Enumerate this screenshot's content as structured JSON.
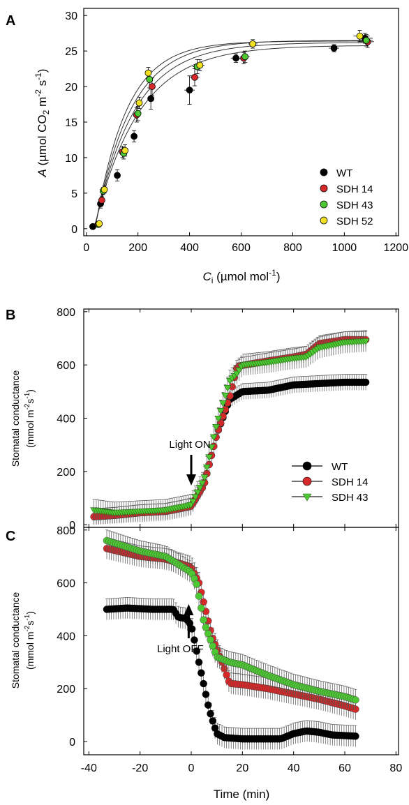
{
  "chart_data": [
    {
      "panel": "A",
      "type": "scatter",
      "xlabel": "Ci (µmol mol-1)",
      "xlabel_main": "C",
      "xlabel_sub": "i",
      "xlabel_rest": " (µmol mol",
      "xlabel_sup": "-1",
      "xlabel_end": ")",
      "ylabel": "A (µmol CO2 m-2 s-1)",
      "ylabel_main": "A",
      "ylabel_p1": " (µmol CO",
      "ylabel_s1": "2",
      "ylabel_p2": " m",
      "ylabel_s2": "-2",
      "ylabel_p3": " s",
      "ylabel_s3": "-1",
      "ylabel_p4": ")",
      "xlim": [
        -10,
        1210
      ],
      "ylim": [
        -1,
        31
      ],
      "xticks": [
        "0",
        "200",
        "400",
        "600",
        "800",
        "1000",
        "1200"
      ],
      "yticks": [
        "0",
        "5",
        "10",
        "15",
        "20",
        "25",
        "30"
      ],
      "legend_position": "lower right",
      "series": [
        {
          "name": "WT",
          "color": "#000000",
          "amax": 25.8,
          "k": 0.0058,
          "x0": 30,
          "x": [
            25,
            55,
            120,
            185,
            250,
            400,
            580,
            960,
            1080
          ],
          "y": [
            0.3,
            3.5,
            7.5,
            13.0,
            18.3,
            19.5,
            24.0,
            25.4,
            26.8
          ],
          "xerr": [
            5,
            5,
            8,
            10,
            12,
            20,
            20,
            20,
            30
          ],
          "yerr": [
            0.2,
            0.6,
            0.8,
            0.8,
            1.5,
            2.0,
            0.6,
            0.5,
            0.7
          ]
        },
        {
          "name": "SDH 14",
          "color": "#d62828",
          "amax": 26.2,
          "k": 0.0065,
          "x0": 32,
          "x": [
            45,
            60,
            140,
            195,
            255,
            420,
            610,
            1090
          ],
          "y": [
            0.6,
            4.0,
            10.8,
            16.0,
            20.0,
            21.3,
            24.0,
            26.3
          ],
          "xerr": [
            5,
            5,
            8,
            10,
            12,
            18,
            18,
            25
          ],
          "yerr": [
            0.2,
            0.5,
            0.8,
            1.0,
            1.2,
            1.2,
            0.8,
            0.8
          ]
        },
        {
          "name": "SDH 43",
          "color": "#4cc832",
          "amax": 26.5,
          "k": 0.0072,
          "x0": 33,
          "x": [
            48,
            65,
            145,
            200,
            245,
            430,
            615,
            1085
          ],
          "y": [
            0.6,
            5.3,
            10.6,
            16.2,
            21.0,
            22.8,
            24.2,
            26.5
          ],
          "xerr": [
            5,
            5,
            8,
            10,
            12,
            18,
            18,
            25
          ],
          "yerr": [
            0.2,
            0.5,
            0.8,
            1.0,
            1.2,
            1.0,
            0.8,
            0.8
          ]
        },
        {
          "name": "SDH 52",
          "color": "#f0e020",
          "amax": 26.4,
          "k": 0.0082,
          "x0": 34,
          "x": [
            50,
            70,
            150,
            205,
            240,
            440,
            645,
            1060
          ],
          "y": [
            0.7,
            5.5,
            11.0,
            17.7,
            21.9,
            23.0,
            26.0,
            27.1
          ],
          "xerr": [
            5,
            5,
            8,
            10,
            12,
            18,
            18,
            25
          ],
          "yerr": [
            0.2,
            0.5,
            0.8,
            0.8,
            0.8,
            0.8,
            0.6,
            0.8
          ]
        }
      ]
    },
    {
      "panel": "B",
      "type": "line",
      "ylabel_line1": "Stomatal conductance",
      "ylabel_line2_p1": "(mmol m",
      "ylabel_line2_s1": "-2",
      "ylabel_line2_p2": "s",
      "ylabel_line2_s2": "-1",
      "ylabel_line2_p3": ")",
      "xlim": [
        -42,
        81
      ],
      "ylim": [
        -10,
        810
      ],
      "yticks": [
        "0",
        "200",
        "400",
        "600",
        "800"
      ],
      "annotation": "Light ON",
      "annotation_x": 0,
      "legend_position": "right",
      "series": [
        {
          "name": "WT",
          "color": "#000000",
          "marker": "circle",
          "keypoints": [
            [
              -38,
              30
            ],
            [
              -30,
              35
            ],
            [
              -20,
              45
            ],
            [
              -10,
              50
            ],
            [
              -2,
              65
            ],
            [
              0,
              70
            ],
            [
              5,
              150
            ],
            [
              10,
              340
            ],
            [
              15,
              470
            ],
            [
              20,
              500
            ],
            [
              30,
              505
            ],
            [
              40,
              525
            ],
            [
              50,
              530
            ],
            [
              60,
              535
            ],
            [
              69,
              535
            ]
          ],
          "err": 30
        },
        {
          "name": "SDH 14",
          "color": "#d62828",
          "marker": "circle",
          "keypoints": [
            [
              -38,
              30
            ],
            [
              -30,
              35
            ],
            [
              -20,
              45
            ],
            [
              -10,
              50
            ],
            [
              -2,
              65
            ],
            [
              0,
              70
            ],
            [
              5,
              150
            ],
            [
              10,
              340
            ],
            [
              15,
              480
            ],
            [
              18,
              595
            ],
            [
              30,
              615
            ],
            [
              40,
              630
            ],
            [
              45,
              640
            ],
            [
              50,
              680
            ],
            [
              60,
              695
            ],
            [
              69,
              695
            ]
          ],
          "err": 30
        },
        {
          "name": "SDH 43",
          "color": "#4cc832",
          "marker": "triangle",
          "keypoints": [
            [
              -38,
              55
            ],
            [
              -30,
              45
            ],
            [
              -20,
              50
            ],
            [
              -10,
              55
            ],
            [
              -2,
              70
            ],
            [
              0,
              75
            ],
            [
              5,
              170
            ],
            [
              10,
              380
            ],
            [
              15,
              540
            ],
            [
              18,
              570
            ],
            [
              20,
              600
            ],
            [
              30,
              610
            ],
            [
              40,
              625
            ],
            [
              45,
              630
            ],
            [
              50,
              665
            ],
            [
              60,
              685
            ],
            [
              69,
              690
            ]
          ],
          "err": 40
        }
      ]
    },
    {
      "panel": "C",
      "type": "line",
      "xlabel": "Time (min)",
      "ylabel_line1": "Stomatal conductance",
      "ylabel_line2_p1": "(mmol m",
      "ylabel_line2_s1": "-2",
      "ylabel_line2_p2": "s",
      "ylabel_line2_s2": "-1",
      "ylabel_line2_p3": ")",
      "xlim": [
        -42,
        81
      ],
      "ylim": [
        -50,
        810
      ],
      "xticks": [
        "-40",
        "-20",
        "0",
        "20",
        "40",
        "60",
        "80"
      ],
      "yticks": [
        "0",
        "200",
        "400",
        "600",
        "800"
      ],
      "annotation": "Light OFF",
      "annotation_x": -1,
      "series": [
        {
          "name": "WT",
          "color": "#000000",
          "marker": "circle",
          "keypoints": [
            [
              -33,
              500
            ],
            [
              -25,
              505
            ],
            [
              -15,
              500
            ],
            [
              -7,
              500
            ],
            [
              -5,
              470
            ],
            [
              -2,
              465
            ],
            [
              0,
              440
            ],
            [
              3,
              300
            ],
            [
              7,
              120
            ],
            [
              10,
              30
            ],
            [
              13,
              15
            ],
            [
              20,
              10
            ],
            [
              30,
              10
            ],
            [
              35,
              10
            ],
            [
              40,
              30
            ],
            [
              45,
              40
            ],
            [
              50,
              35
            ],
            [
              55,
              25
            ],
            [
              65,
              20
            ]
          ],
          "err": 40
        },
        {
          "name": "SDH 14",
          "color": "#d62828",
          "marker": "circle",
          "keypoints": [
            [
              -33,
              730
            ],
            [
              -20,
              700
            ],
            [
              -10,
              690
            ],
            [
              0,
              660
            ],
            [
              3,
              600
            ],
            [
              8,
              400
            ],
            [
              12,
              300
            ],
            [
              15,
              220
            ],
            [
              20,
              215
            ],
            [
              30,
              200
            ],
            [
              40,
              180
            ],
            [
              50,
              160
            ],
            [
              60,
              135
            ],
            [
              65,
              120
            ]
          ],
          "err": 40
        },
        {
          "name": "SDH 43",
          "color": "#4cc832",
          "marker": "circle",
          "keypoints": [
            [
              -33,
              760
            ],
            [
              -20,
              720
            ],
            [
              -10,
              700
            ],
            [
              0,
              640
            ],
            [
              2,
              600
            ],
            [
              5,
              450
            ],
            [
              10,
              320
            ],
            [
              15,
              300
            ],
            [
              20,
              290
            ],
            [
              30,
              250
            ],
            [
              40,
              215
            ],
            [
              50,
              190
            ],
            [
              60,
              170
            ],
            [
              65,
              155
            ]
          ],
          "err": 40
        }
      ]
    }
  ]
}
